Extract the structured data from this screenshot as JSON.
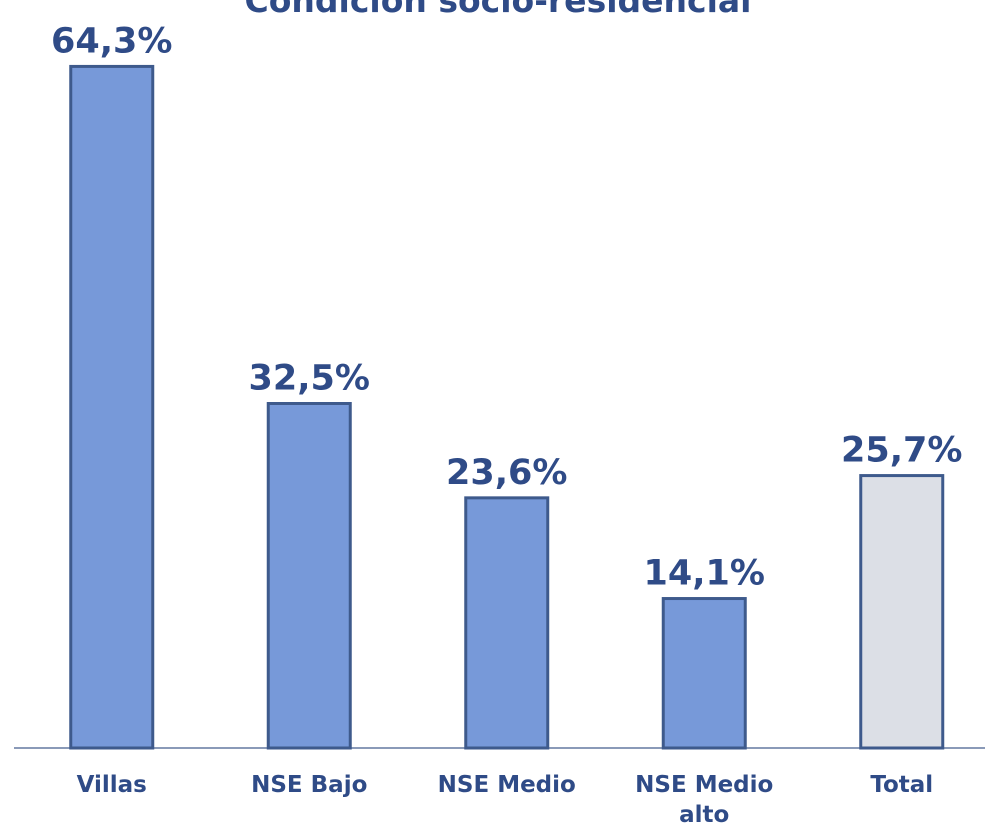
{
  "chart_data": {
    "type": "bar",
    "title": "Condición socio-residencial",
    "categories": [
      "Villas",
      "NSE Bajo",
      "NSE Medio",
      "NSE Medio alto",
      "Total"
    ],
    "values": [
      64.3,
      32.5,
      23.6,
      14.1,
      25.7
    ],
    "value_labels": [
      "64,3%",
      "32,5%",
      "23,6%",
      "14,1%",
      "25,7%"
    ],
    "colors": [
      "#7799d9",
      "#7799d9",
      "#7799d9",
      "#7799d9",
      "#dcdfe6"
    ]
  }
}
